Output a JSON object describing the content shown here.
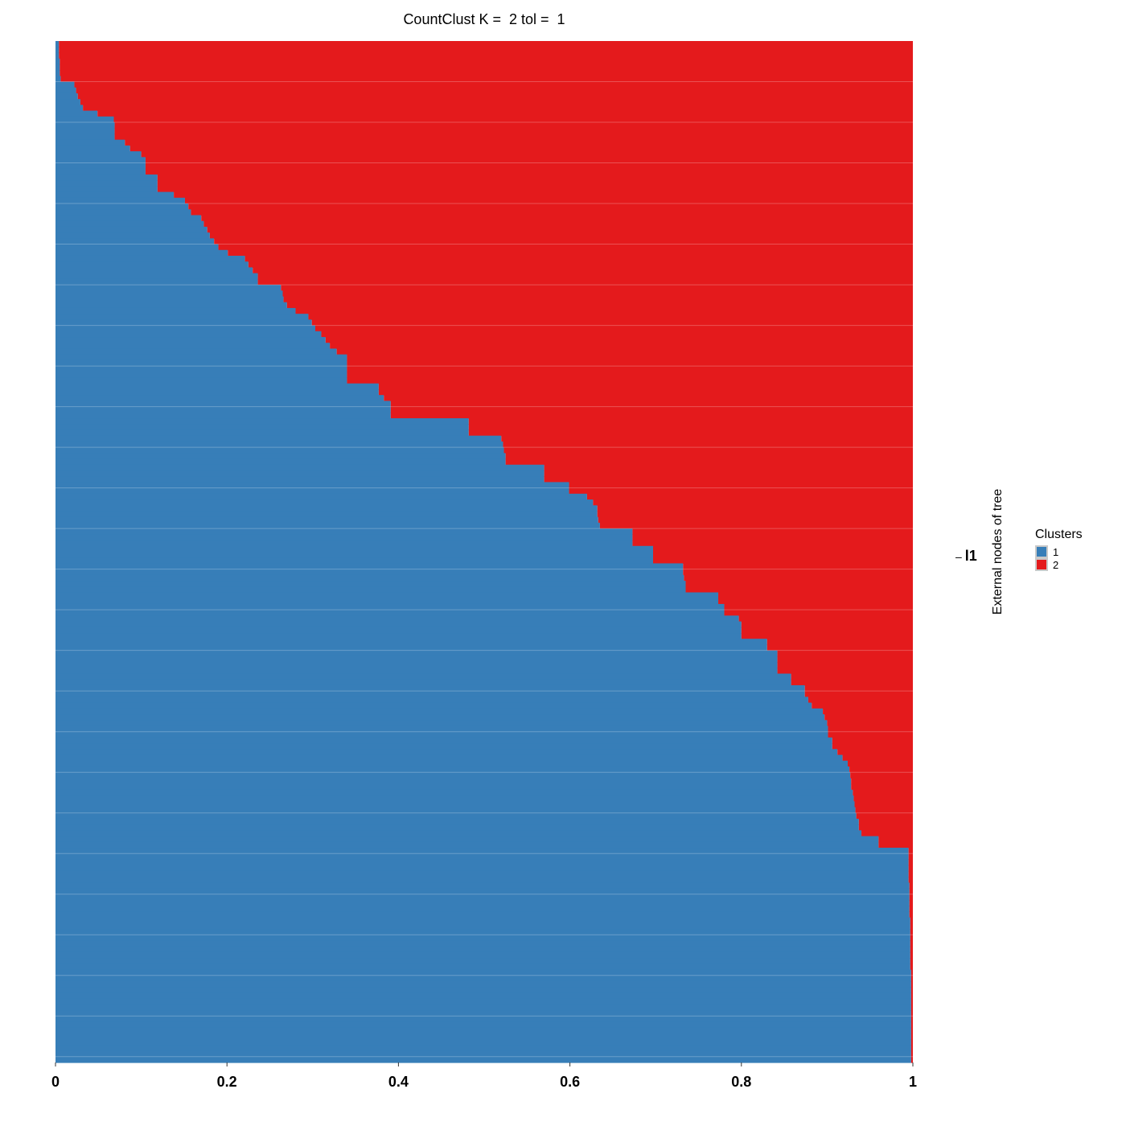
{
  "chart_data": {
    "type": "bar",
    "orientation": "horizontal-stacked",
    "title": "CountClust K =  2 tol =  1",
    "ylabel": "External nodes of tree",
    "xlim": [
      0,
      1
    ],
    "x_ticks": [
      "0",
      "0.2",
      "0.4",
      "0.6",
      "0.8",
      "1"
    ],
    "y_tick_labels": [
      "l1"
    ],
    "legend": {
      "title": "Clusters",
      "position": "right",
      "entries": [
        {
          "name": "1",
          "color": "#377eb8"
        },
        {
          "name": "2",
          "color": "#e41a1c"
        }
      ]
    },
    "colors": {
      "cluster_1": "#377eb8",
      "cluster_2": "#e41a1c"
    },
    "grid": false,
    "series": [
      {
        "name": "1",
        "values": [
          0.004,
          0.004,
          0.004,
          0.005,
          0.005,
          0.005,
          0.006,
          0.022,
          0.024,
          0.026,
          0.029,
          0.032,
          0.049,
          0.068,
          0.069,
          0.069,
          0.069,
          0.081,
          0.087,
          0.1,
          0.105,
          0.105,
          0.105,
          0.119,
          0.119,
          0.119,
          0.138,
          0.151,
          0.155,
          0.158,
          0.17,
          0.173,
          0.177,
          0.18,
          0.185,
          0.19,
          0.201,
          0.221,
          0.225,
          0.23,
          0.236,
          0.236,
          0.263,
          0.265,
          0.266,
          0.27,
          0.28,
          0.295,
          0.299,
          0.303,
          0.31,
          0.315,
          0.32,
          0.328,
          0.34,
          0.34,
          0.34,
          0.34,
          0.34,
          0.377,
          0.377,
          0.383,
          0.391,
          0.391,
          0.391,
          0.482,
          0.482,
          0.482,
          0.52,
          0.522,
          0.523,
          0.525,
          0.525,
          0.57,
          0.57,
          0.57,
          0.599,
          0.599,
          0.62,
          0.627,
          0.632,
          0.632,
          0.633,
          0.635,
          0.673,
          0.673,
          0.673,
          0.697,
          0.697,
          0.697,
          0.732,
          0.732,
          0.733,
          0.735,
          0.735,
          0.773,
          0.773,
          0.78,
          0.78,
          0.797,
          0.8,
          0.8,
          0.8,
          0.83,
          0.83,
          0.842,
          0.842,
          0.842,
          0.842,
          0.858,
          0.858,
          0.874,
          0.874,
          0.878,
          0.882,
          0.895,
          0.897,
          0.9,
          0.901,
          0.901,
          0.906,
          0.906,
          0.912,
          0.918,
          0.924,
          0.926,
          0.927,
          0.928,
          0.928,
          0.93,
          0.931,
          0.932,
          0.933,
          0.934,
          0.937,
          0.937,
          0.94,
          0.96,
          0.96,
          0.995,
          0.995,
          0.995,
          0.995,
          0.995,
          0.995,
          0.996,
          0.996,
          0.996,
          0.996,
          0.996,
          0.996,
          0.997,
          0.997,
          0.997,
          0.997,
          0.997,
          0.997,
          0.997,
          0.997,
          0.997,
          0.998,
          0.998,
          0.998,
          0.998,
          0.998,
          0.998,
          0.998,
          0.998,
          0.998,
          0.998,
          0.998,
          0.998,
          0.998,
          0.998,
          0.998,
          0.998
        ]
      },
      {
        "name": "2",
        "values": [
          0.996,
          0.996,
          0.996,
          0.995,
          0.995,
          0.995,
          0.994,
          0.978,
          0.976,
          0.974,
          0.971,
          0.968,
          0.951,
          0.932,
          0.931,
          0.931,
          0.931,
          0.919,
          0.913,
          0.9,
          0.895,
          0.895,
          0.895,
          0.881,
          0.881,
          0.881,
          0.862,
          0.849,
          0.845,
          0.842,
          0.83,
          0.827,
          0.823,
          0.82,
          0.815,
          0.81,
          0.799,
          0.779,
          0.775,
          0.77,
          0.764,
          0.764,
          0.737,
          0.735,
          0.734,
          0.73,
          0.72,
          0.705,
          0.701,
          0.697,
          0.69,
          0.685,
          0.68,
          0.672,
          0.66,
          0.66,
          0.66,
          0.66,
          0.66,
          0.623,
          0.623,
          0.617,
          0.609,
          0.609,
          0.609,
          0.518,
          0.518,
          0.518,
          0.48,
          0.478,
          0.477,
          0.475,
          0.475,
          0.43,
          0.43,
          0.43,
          0.401,
          0.401,
          0.38,
          0.373,
          0.368,
          0.368,
          0.367,
          0.365,
          0.327,
          0.327,
          0.327,
          0.303,
          0.303,
          0.303,
          0.268,
          0.268,
          0.267,
          0.265,
          0.265,
          0.227,
          0.227,
          0.22,
          0.22,
          0.203,
          0.2,
          0.2,
          0.2,
          0.17,
          0.17,
          0.158,
          0.158,
          0.158,
          0.158,
          0.142,
          0.142,
          0.126,
          0.126,
          0.122,
          0.118,
          0.105,
          0.103,
          0.1,
          0.099,
          0.099,
          0.094,
          0.094,
          0.088,
          0.082,
          0.076,
          0.074,
          0.073,
          0.072,
          0.072,
          0.07,
          0.069,
          0.068,
          0.067,
          0.066,
          0.063,
          0.063,
          0.06,
          0.04,
          0.04,
          0.005,
          0.005,
          0.005,
          0.005,
          0.005,
          0.005,
          0.004,
          0.004,
          0.004,
          0.004,
          0.004,
          0.004,
          0.003,
          0.003,
          0.003,
          0.003,
          0.003,
          0.003,
          0.003,
          0.003,
          0.003,
          0.002,
          0.002,
          0.002,
          0.002,
          0.002,
          0.002,
          0.002,
          0.002,
          0.002,
          0.002,
          0.002,
          0.002,
          0.002,
          0.002,
          0.002,
          0.002
        ]
      }
    ]
  }
}
